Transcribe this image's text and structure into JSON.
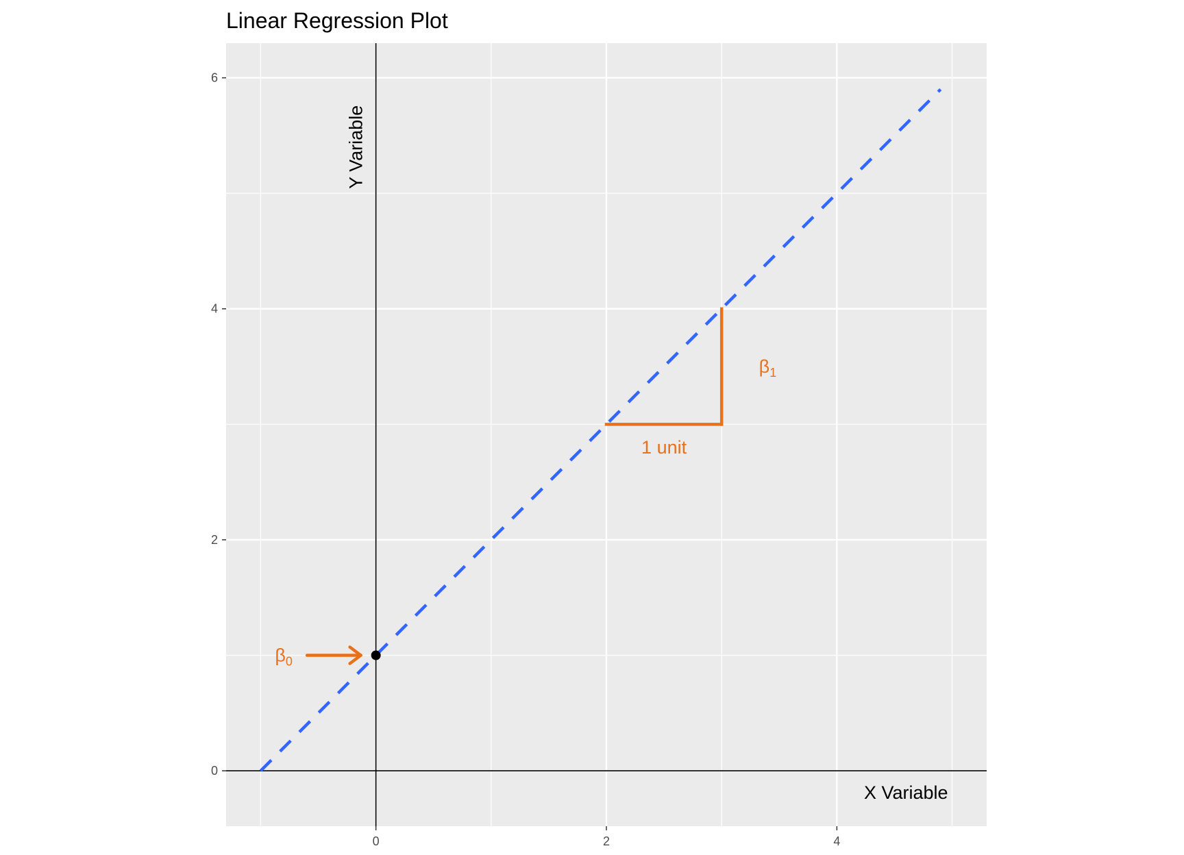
{
  "chart_data": {
    "type": "line",
    "title": "Linear Regression Plot",
    "xlabel": "X Variable",
    "ylabel": "Y Variable",
    "xlim": [
      -1.3,
      5.3
    ],
    "ylim": [
      -0.48,
      6.3
    ],
    "x_ticks": [
      0,
      2,
      4
    ],
    "y_ticks": [
      0,
      2,
      4,
      6
    ],
    "grid": true,
    "series": [
      {
        "x": [
          -1,
          4.9
        ],
        "y": [
          0,
          5.9
        ],
        "style": "dashed",
        "color": "#3366ff"
      }
    ],
    "intercept_point": {
      "x": 0,
      "y": 1
    },
    "slope_triangle": {
      "x0": 2,
      "y0": 3,
      "x1": 3,
      "y1": 4,
      "color": "#e8711c"
    },
    "annotations": {
      "beta0": {
        "symbol": "β",
        "subscript": "0",
        "x": -0.8,
        "y": 1
      },
      "beta1": {
        "symbol": "β",
        "subscript": "1",
        "x": 3.4,
        "y": 3.5
      },
      "unit": {
        "text": "1 unit",
        "x": 2.5,
        "y": 2.8
      }
    },
    "colors": {
      "panel": "#ebebeb",
      "grid": "#ffffff",
      "reference_axes": "#000000",
      "accent": "#e8711c",
      "line": "#3366ff"
    }
  }
}
